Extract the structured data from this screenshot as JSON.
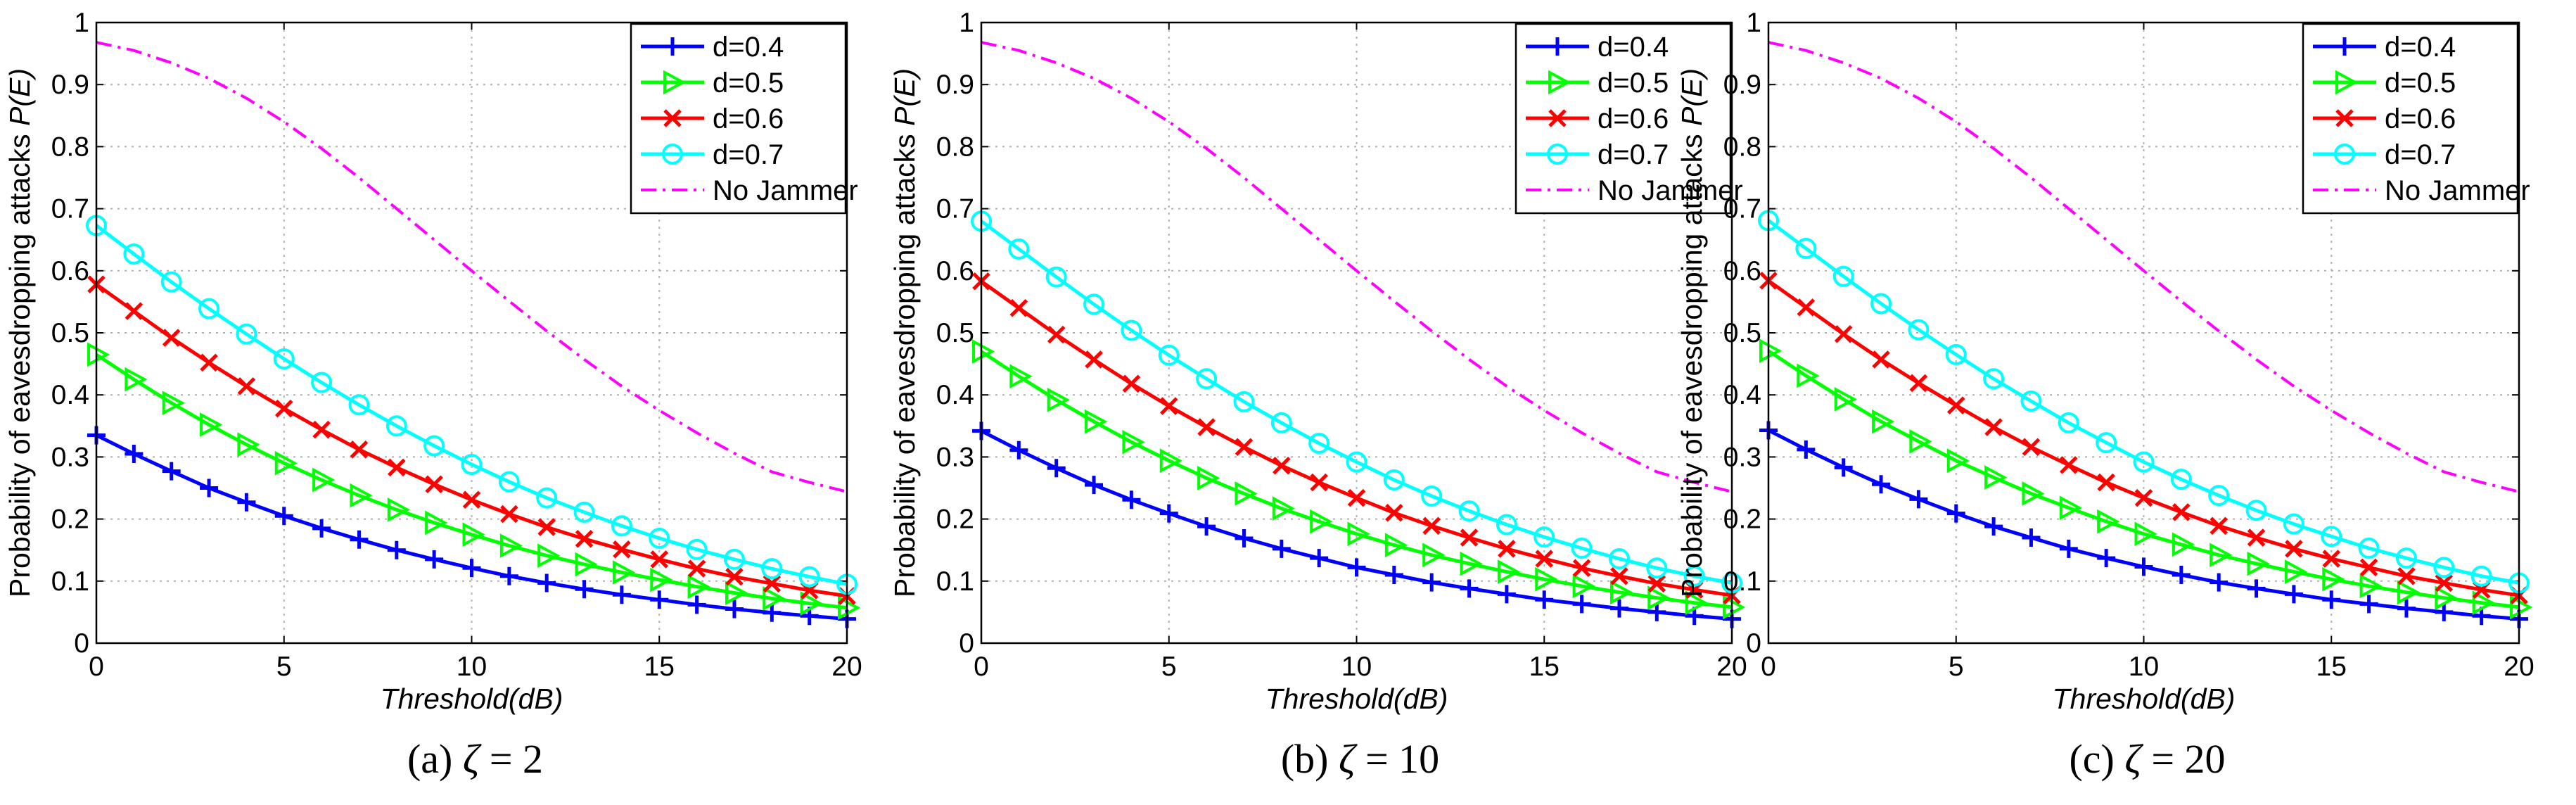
{
  "chart_data": [
    {
      "type": "line",
      "caption": "(a)",
      "caption_math": "ζ = 2",
      "xlabel": "Threshold(dB)",
      "ylabel": "Probability of eavesdropping attacks P(E)",
      "xlim": [
        0,
        20
      ],
      "ylim": [
        0,
        1
      ],
      "xticks": [
        "0",
        "5",
        "10",
        "15",
        "20"
      ],
      "yticks": [
        "0",
        "0.1",
        "0.2",
        "0.3",
        "0.4",
        "0.5",
        "0.6",
        "0.7",
        "0.8",
        "0.9",
        "1"
      ],
      "grid": true,
      "legend_position": "top-right",
      "x": [
        0,
        1,
        2,
        3,
        4,
        5,
        6,
        7,
        8,
        9,
        10,
        11,
        12,
        13,
        14,
        15,
        16,
        17,
        18,
        19,
        20
      ],
      "series": [
        {
          "name": "d=0.4",
          "color": "#0000ff",
          "marker": "plus",
          "values": [
            0.335,
            0.305,
            0.277,
            0.25,
            0.227,
            0.205,
            0.185,
            0.167,
            0.15,
            0.135,
            0.121,
            0.108,
            0.097,
            0.087,
            0.078,
            0.07,
            0.062,
            0.055,
            0.049,
            0.044,
            0.039
          ]
        },
        {
          "name": "d=0.5",
          "color": "#00ff00",
          "marker": "triangle-right",
          "values": [
            0.465,
            0.425,
            0.387,
            0.352,
            0.32,
            0.29,
            0.263,
            0.238,
            0.215,
            0.194,
            0.175,
            0.157,
            0.141,
            0.127,
            0.114,
            0.102,
            0.091,
            0.081,
            0.072,
            0.064,
            0.057
          ]
        },
        {
          "name": "d=0.6",
          "color": "#ff0000",
          "marker": "x",
          "values": [
            0.578,
            0.535,
            0.492,
            0.452,
            0.414,
            0.378,
            0.344,
            0.312,
            0.283,
            0.256,
            0.231,
            0.208,
            0.187,
            0.168,
            0.151,
            0.135,
            0.12,
            0.107,
            0.096,
            0.085,
            0.076
          ]
        },
        {
          "name": "d=0.7",
          "color": "#00ffff",
          "marker": "circle",
          "values": [
            0.673,
            0.627,
            0.582,
            0.539,
            0.498,
            0.458,
            0.42,
            0.384,
            0.35,
            0.318,
            0.288,
            0.26,
            0.234,
            0.211,
            0.189,
            0.169,
            0.151,
            0.135,
            0.12,
            0.107,
            0.095
          ]
        },
        {
          "name": "No Jammer",
          "color": "#ff00ff",
          "marker": "none",
          "dash": "dashdot",
          "values": [
            0.968,
            0.955,
            0.935,
            0.91,
            0.878,
            0.84,
            0.797,
            0.75,
            0.7,
            0.65,
            0.6,
            0.551,
            0.503,
            0.457,
            0.414,
            0.375,
            0.339,
            0.306,
            0.276,
            0.259,
            0.244
          ]
        }
      ]
    },
    {
      "type": "line",
      "caption": "(b)",
      "caption_math": "ζ = 10",
      "xlabel": "Threshold(dB)",
      "ylabel": "Probability of eavesdropping attacks P(E)",
      "xlim": [
        0,
        20
      ],
      "ylim": [
        0,
        1
      ],
      "xticks": [
        "0",
        "5",
        "10",
        "15",
        "20"
      ],
      "yticks": [
        "0",
        "0.1",
        "0.2",
        "0.3",
        "0.4",
        "0.5",
        "0.6",
        "0.7",
        "0.8",
        "0.9",
        "1"
      ],
      "grid": true,
      "legend_position": "top-right",
      "x": [
        0,
        1,
        2,
        3,
        4,
        5,
        6,
        7,
        8,
        9,
        10,
        11,
        12,
        13,
        14,
        15,
        16,
        17,
        18,
        19,
        20
      ],
      "series": [
        {
          "name": "d=0.4",
          "color": "#0000ff",
          "marker": "plus",
          "values": [
            0.342,
            0.311,
            0.282,
            0.255,
            0.231,
            0.209,
            0.188,
            0.169,
            0.152,
            0.137,
            0.122,
            0.11,
            0.098,
            0.088,
            0.079,
            0.07,
            0.063,
            0.056,
            0.05,
            0.044,
            0.039
          ]
        },
        {
          "name": "d=0.5",
          "color": "#00ff00",
          "marker": "triangle-right",
          "values": [
            0.47,
            0.43,
            0.392,
            0.357,
            0.324,
            0.294,
            0.266,
            0.241,
            0.217,
            0.196,
            0.176,
            0.158,
            0.142,
            0.128,
            0.115,
            0.103,
            0.092,
            0.082,
            0.073,
            0.065,
            0.058
          ]
        },
        {
          "name": "d=0.6",
          "color": "#ff0000",
          "marker": "x",
          "values": [
            0.583,
            0.54,
            0.497,
            0.457,
            0.418,
            0.382,
            0.348,
            0.316,
            0.286,
            0.259,
            0.234,
            0.21,
            0.189,
            0.17,
            0.152,
            0.136,
            0.121,
            0.108,
            0.096,
            0.086,
            0.077
          ]
        },
        {
          "name": "d=0.7",
          "color": "#00ffff",
          "marker": "circle",
          "values": [
            0.68,
            0.635,
            0.59,
            0.546,
            0.504,
            0.464,
            0.426,
            0.389,
            0.355,
            0.322,
            0.292,
            0.263,
            0.237,
            0.213,
            0.191,
            0.171,
            0.153,
            0.136,
            0.121,
            0.108,
            0.097
          ]
        },
        {
          "name": "No Jammer",
          "color": "#ff00ff",
          "marker": "none",
          "dash": "dashdot",
          "values": [
            0.968,
            0.955,
            0.935,
            0.91,
            0.878,
            0.84,
            0.797,
            0.75,
            0.7,
            0.65,
            0.6,
            0.551,
            0.503,
            0.457,
            0.414,
            0.375,
            0.339,
            0.306,
            0.276,
            0.259,
            0.244
          ]
        }
      ]
    },
    {
      "type": "line",
      "caption": "(c)",
      "caption_math": "ζ = 20",
      "xlabel": "Threshold(dB)",
      "ylabel": "Probability of eavesdropping attacks P(E)",
      "xlim": [
        0,
        20
      ],
      "ylim": [
        0,
        1
      ],
      "xticks": [
        "0",
        "5",
        "10",
        "15",
        "20"
      ],
      "yticks": [
        "0",
        "0.1",
        "0.2",
        "0.3",
        "0.4",
        "0.5",
        "0.6",
        "0.7",
        "0.8",
        "0.9",
        "1"
      ],
      "grid": true,
      "legend_position": "top-right",
      "x": [
        0,
        1,
        2,
        3,
        4,
        5,
        6,
        7,
        8,
        9,
        10,
        11,
        12,
        13,
        14,
        15,
        16,
        17,
        18,
        19,
        20
      ],
      "series": [
        {
          "name": "d=0.4",
          "color": "#0000ff",
          "marker": "plus",
          "values": [
            0.343,
            0.312,
            0.283,
            0.256,
            0.232,
            0.209,
            0.188,
            0.17,
            0.152,
            0.137,
            0.123,
            0.11,
            0.098,
            0.088,
            0.079,
            0.07,
            0.063,
            0.056,
            0.05,
            0.044,
            0.039
          ]
        },
        {
          "name": "d=0.5",
          "color": "#00ff00",
          "marker": "triangle-right",
          "values": [
            0.471,
            0.431,
            0.393,
            0.357,
            0.325,
            0.294,
            0.267,
            0.241,
            0.218,
            0.196,
            0.176,
            0.159,
            0.142,
            0.128,
            0.115,
            0.103,
            0.092,
            0.082,
            0.073,
            0.065,
            0.058
          ]
        },
        {
          "name": "d=0.6",
          "color": "#ff0000",
          "marker": "x",
          "values": [
            0.584,
            0.541,
            0.498,
            0.457,
            0.419,
            0.383,
            0.348,
            0.316,
            0.287,
            0.259,
            0.234,
            0.211,
            0.189,
            0.17,
            0.152,
            0.136,
            0.122,
            0.108,
            0.097,
            0.086,
            0.077
          ]
        },
        {
          "name": "d=0.7",
          "color": "#00ffff",
          "marker": "circle",
          "values": [
            0.681,
            0.636,
            0.591,
            0.547,
            0.505,
            0.465,
            0.426,
            0.39,
            0.355,
            0.323,
            0.292,
            0.264,
            0.238,
            0.214,
            0.192,
            0.172,
            0.153,
            0.137,
            0.122,
            0.108,
            0.097
          ]
        },
        {
          "name": "No Jammer",
          "color": "#ff00ff",
          "marker": "none",
          "dash": "dashdot",
          "values": [
            0.968,
            0.955,
            0.935,
            0.91,
            0.878,
            0.84,
            0.797,
            0.75,
            0.7,
            0.65,
            0.6,
            0.551,
            0.503,
            0.457,
            0.414,
            0.375,
            0.339,
            0.306,
            0.276,
            0.259,
            0.244
          ]
        }
      ]
    }
  ]
}
